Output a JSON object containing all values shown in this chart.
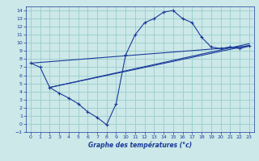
{
  "title": "Graphe des températures (°c)",
  "bg_color": "#cce8e8",
  "grid_color": "#99cccc",
  "line_color": "#1a3a9a",
  "xlim": [
    -0.5,
    23.5
  ],
  "ylim": [
    -1,
    14.5
  ],
  "xticks": [
    0,
    1,
    2,
    3,
    4,
    5,
    6,
    7,
    8,
    9,
    10,
    11,
    12,
    13,
    14,
    15,
    16,
    17,
    18,
    19,
    20,
    21,
    22,
    23
  ],
  "yticks": [
    -1,
    0,
    1,
    2,
    3,
    4,
    5,
    6,
    7,
    8,
    9,
    10,
    11,
    12,
    13,
    14
  ],
  "line1_x": [
    0,
    1,
    2,
    3,
    4,
    5,
    6,
    7,
    8,
    9,
    10,
    11,
    12,
    13,
    14,
    15,
    16,
    17,
    18,
    19,
    20,
    21,
    22,
    23
  ],
  "line1_y": [
    7.5,
    7.0,
    4.5,
    3.8,
    3.2,
    2.5,
    1.5,
    0.8,
    -0.1,
    2.5,
    8.5,
    11.0,
    12.5,
    13.0,
    13.8,
    14.0,
    13.0,
    12.5,
    10.7,
    9.5,
    9.3,
    9.5,
    9.3,
    9.6
  ],
  "line2_x": [
    0,
    23
  ],
  "line2_y": [
    7.5,
    9.6
  ],
  "line3_x": [
    2,
    23
  ],
  "line3_y": [
    4.5,
    9.7
  ],
  "line4_x": [
    2,
    23
  ],
  "line4_y": [
    4.5,
    9.9
  ]
}
